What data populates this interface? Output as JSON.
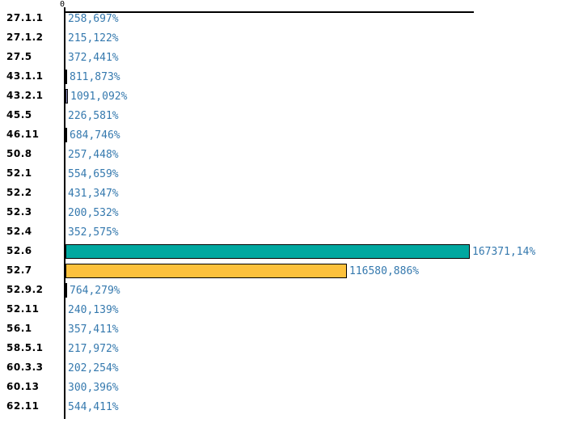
{
  "chart_data": {
    "type": "bar",
    "orientation": "horizontal",
    "title": "",
    "xlabel": "",
    "ylabel": "",
    "axis_origin_label": "0",
    "value_unit": "%",
    "xlim": [
      0,
      169700
    ],
    "grid": false,
    "legend": false,
    "categories": [
      "27.1.1",
      "27.1.2",
      "27.5",
      "43.1.1",
      "43.2.1",
      "45.5",
      "46.11",
      "50.8",
      "52.1",
      "52.2",
      "52.3",
      "52.4",
      "52.6",
      "52.7",
      "52.9.2",
      "52.11",
      "56.1",
      "58.5.1",
      "60.3.3",
      "60.13",
      "62.11"
    ],
    "values": [
      258.697,
      215.122,
      372.441,
      811.873,
      1091.092,
      226.581,
      684.746,
      257.448,
      554.659,
      431.347,
      200.532,
      352.575,
      167371.14,
      116580.886,
      764.279,
      240.139,
      357.411,
      217.972,
      202.254,
      300.396,
      544.411
    ],
    "value_labels": [
      "258,697%",
      "215,122%",
      "372,441%",
      "811,873%",
      "1091,092%",
      "226,581%",
      "684,746%",
      "257,448%",
      "554,659%",
      "431,347%",
      "200,532%",
      "352,575%",
      "167371,14%",
      "116580,886%",
      "764,279%",
      "240,139%",
      "357,411%",
      "217,972%",
      "202,254%",
      "300,396%",
      "544,411%"
    ],
    "bar_colors": [
      null,
      null,
      null,
      "#000000",
      "#9999CC",
      null,
      "#000000",
      null,
      null,
      null,
      null,
      null,
      "#00A8A0",
      "#FCC13D",
      "#000000",
      null,
      null,
      null,
      null,
      null,
      null
    ],
    "colors": {
      "background": "#FFFFFF",
      "axis": "#000000",
      "category_text": "#000000",
      "value_label_text": "#3579AE",
      "bar_border": "#000000",
      "bar_teal": "#00A8A0",
      "bar_orange": "#FCC13D",
      "bar_purple": "#9999CC"
    }
  }
}
